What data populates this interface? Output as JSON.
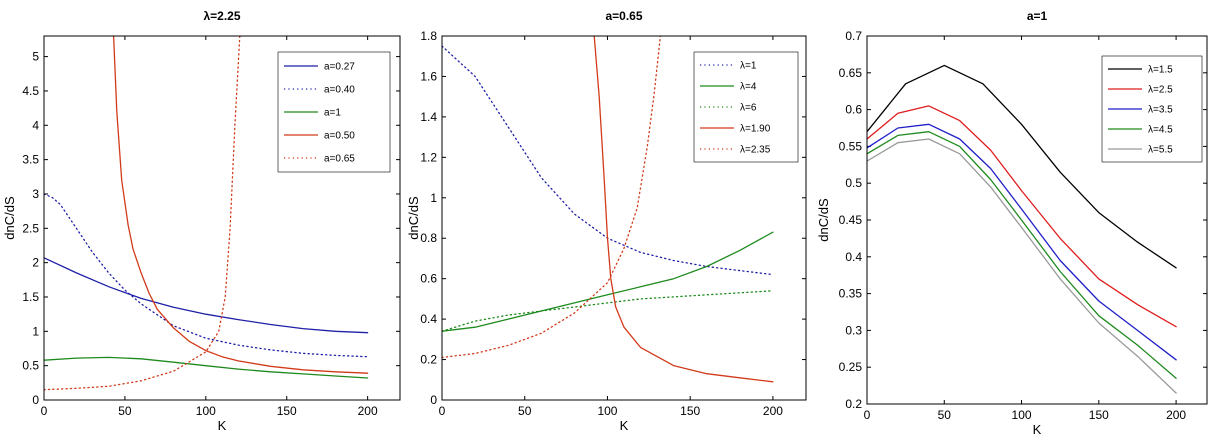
{
  "chart_data": [
    {
      "type": "line",
      "title": "λ=2.25",
      "xlabel": "K",
      "ylabel": "dnC/dS",
      "xlim": [
        0,
        220
      ],
      "ylim": [
        0,
        5.3
      ],
      "xticks": [
        0,
        50,
        100,
        150,
        200
      ],
      "yticks": [
        0,
        0.5,
        1,
        1.5,
        2,
        2.5,
        3,
        3.5,
        4,
        4.5,
        5
      ],
      "legend_position": "top-right",
      "series": [
        {
          "name": "a=0.27",
          "color": "#1f1fa8",
          "dash": "solid",
          "x": [
            0,
            20,
            40,
            60,
            80,
            100,
            120,
            140,
            160,
            180,
            200
          ],
          "y": [
            2.07,
            1.85,
            1.65,
            1.48,
            1.35,
            1.25,
            1.17,
            1.1,
            1.04,
            1.0,
            0.98
          ]
        },
        {
          "name": "a=0.40",
          "color": "#1f1fa8",
          "dash": "dotted",
          "x": [
            0,
            5,
            10,
            20,
            30,
            40,
            50,
            60,
            80,
            100,
            120,
            140,
            160,
            180,
            200
          ],
          "y": [
            3.0,
            2.95,
            2.85,
            2.5,
            2.15,
            1.85,
            1.6,
            1.4,
            1.08,
            0.9,
            0.8,
            0.73,
            0.68,
            0.65,
            0.63
          ]
        },
        {
          "name": "a=1",
          "color": "#1e8a1e",
          "dash": "solid",
          "x": [
            0,
            20,
            40,
            60,
            80,
            100,
            120,
            140,
            160,
            180,
            200
          ],
          "y": [
            0.58,
            0.61,
            0.62,
            0.6,
            0.55,
            0.5,
            0.45,
            0.41,
            0.38,
            0.35,
            0.32
          ]
        },
        {
          "name": "a=0.50",
          "color": "#d23a1a",
          "dash": "solid",
          "x": [
            43,
            45,
            48,
            52,
            55,
            60,
            65,
            70,
            80,
            90,
            100,
            110,
            120,
            140,
            160,
            180,
            200
          ],
          "y": [
            5.3,
            4.2,
            3.2,
            2.55,
            2.2,
            1.85,
            1.55,
            1.32,
            1.05,
            0.85,
            0.72,
            0.63,
            0.57,
            0.49,
            0.44,
            0.41,
            0.39
          ]
        },
        {
          "name": "a=0.65",
          "color": "#d23a1a",
          "dash": "dotted",
          "x": [
            0,
            20,
            40,
            60,
            80,
            100,
            108,
            112,
            115,
            118,
            121
          ],
          "y": [
            0.15,
            0.17,
            0.2,
            0.28,
            0.42,
            0.7,
            1.0,
            1.5,
            2.5,
            4.0,
            5.3
          ]
        }
      ]
    },
    {
      "type": "line",
      "title": "a=0.65",
      "xlabel": "K",
      "ylabel": "dnC/dS",
      "xlim": [
        0,
        220
      ],
      "ylim": [
        0,
        1.8
      ],
      "xticks": [
        0,
        50,
        100,
        150,
        200
      ],
      "yticks": [
        0,
        0.2,
        0.4,
        0.6,
        0.8,
        1,
        1.2,
        1.4,
        1.6,
        1.8
      ],
      "legend_position": "top-right",
      "series": [
        {
          "name": "λ=1",
          "color": "#1f1fa8",
          "dash": "dotted",
          "x": [
            0,
            20,
            40,
            60,
            80,
            100,
            120,
            140,
            160,
            180,
            200
          ],
          "y": [
            1.75,
            1.6,
            1.35,
            1.1,
            0.92,
            0.8,
            0.73,
            0.69,
            0.66,
            0.64,
            0.62
          ]
        },
        {
          "name": "λ=4",
          "color": "#1e8a1e",
          "dash": "solid",
          "x": [
            0,
            20,
            40,
            60,
            80,
            100,
            120,
            140,
            160,
            180,
            200
          ],
          "y": [
            0.34,
            0.36,
            0.4,
            0.44,
            0.48,
            0.52,
            0.56,
            0.6,
            0.66,
            0.74,
            0.83
          ]
        },
        {
          "name": "λ=6",
          "color": "#1e8a1e",
          "dash": "dotted",
          "x": [
            0,
            20,
            40,
            60,
            80,
            100,
            120,
            140,
            160,
            180,
            200
          ],
          "y": [
            0.34,
            0.39,
            0.42,
            0.44,
            0.46,
            0.48,
            0.5,
            0.51,
            0.52,
            0.53,
            0.54
          ]
        },
        {
          "name": "λ=1.90",
          "color": "#d23a1a",
          "dash": "solid",
          "x": [
            92,
            95,
            98,
            100,
            102,
            105,
            110,
            120,
            140,
            160,
            180,
            200
          ],
          "y": [
            1.8,
            1.5,
            1.1,
            0.8,
            0.6,
            0.46,
            0.36,
            0.26,
            0.17,
            0.13,
            0.11,
            0.09
          ]
        },
        {
          "name": "λ=2.35",
          "color": "#d23a1a",
          "dash": "dotted",
          "x": [
            0,
            20,
            40,
            60,
            80,
            100,
            110,
            118,
            124,
            128,
            132
          ],
          "y": [
            0.21,
            0.23,
            0.27,
            0.33,
            0.43,
            0.58,
            0.75,
            0.95,
            1.25,
            1.5,
            1.8
          ]
        }
      ]
    },
    {
      "type": "line",
      "title": "a=1",
      "xlabel": "K",
      "ylabel": "dnC/dS",
      "xlim": [
        0,
        220
      ],
      "ylim": [
        0.2,
        0.7
      ],
      "xticks": [
        0,
        50,
        100,
        150,
        200
      ],
      "yticks": [
        0.2,
        0.25,
        0.3,
        0.35,
        0.4,
        0.45,
        0.5,
        0.55,
        0.6,
        0.65,
        0.7
      ],
      "legend_position": "top-right",
      "series": [
        {
          "name": "λ=1.5",
          "color": "#000000",
          "dash": "solid",
          "x": [
            0,
            25,
            50,
            75,
            100,
            125,
            150,
            175,
            200
          ],
          "y": [
            0.57,
            0.635,
            0.66,
            0.635,
            0.58,
            0.515,
            0.46,
            0.42,
            0.385
          ]
        },
        {
          "name": "λ=2.5",
          "color": "#e01c1c",
          "dash": "solid",
          "x": [
            0,
            20,
            40,
            60,
            80,
            100,
            125,
            150,
            175,
            200
          ],
          "y": [
            0.56,
            0.595,
            0.605,
            0.585,
            0.545,
            0.49,
            0.425,
            0.37,
            0.335,
            0.305
          ]
        },
        {
          "name": "λ=3.5",
          "color": "#1f1fc8",
          "dash": "solid",
          "x": [
            0,
            20,
            40,
            60,
            80,
            100,
            125,
            150,
            175,
            200
          ],
          "y": [
            0.548,
            0.575,
            0.58,
            0.56,
            0.52,
            0.465,
            0.395,
            0.34,
            0.3,
            0.26
          ]
        },
        {
          "name": "λ=4.5",
          "color": "#1e8a1e",
          "dash": "solid",
          "x": [
            0,
            20,
            40,
            60,
            80,
            100,
            125,
            150,
            175,
            200
          ],
          "y": [
            0.54,
            0.565,
            0.57,
            0.55,
            0.505,
            0.45,
            0.38,
            0.32,
            0.28,
            0.235
          ]
        },
        {
          "name": "λ=5.5",
          "color": "#9a9a9a",
          "dash": "solid",
          "x": [
            0,
            20,
            40,
            60,
            80,
            100,
            125,
            150,
            175,
            200
          ],
          "y": [
            0.53,
            0.555,
            0.56,
            0.54,
            0.495,
            0.44,
            0.37,
            0.31,
            0.265,
            0.215
          ]
        }
      ]
    }
  ]
}
